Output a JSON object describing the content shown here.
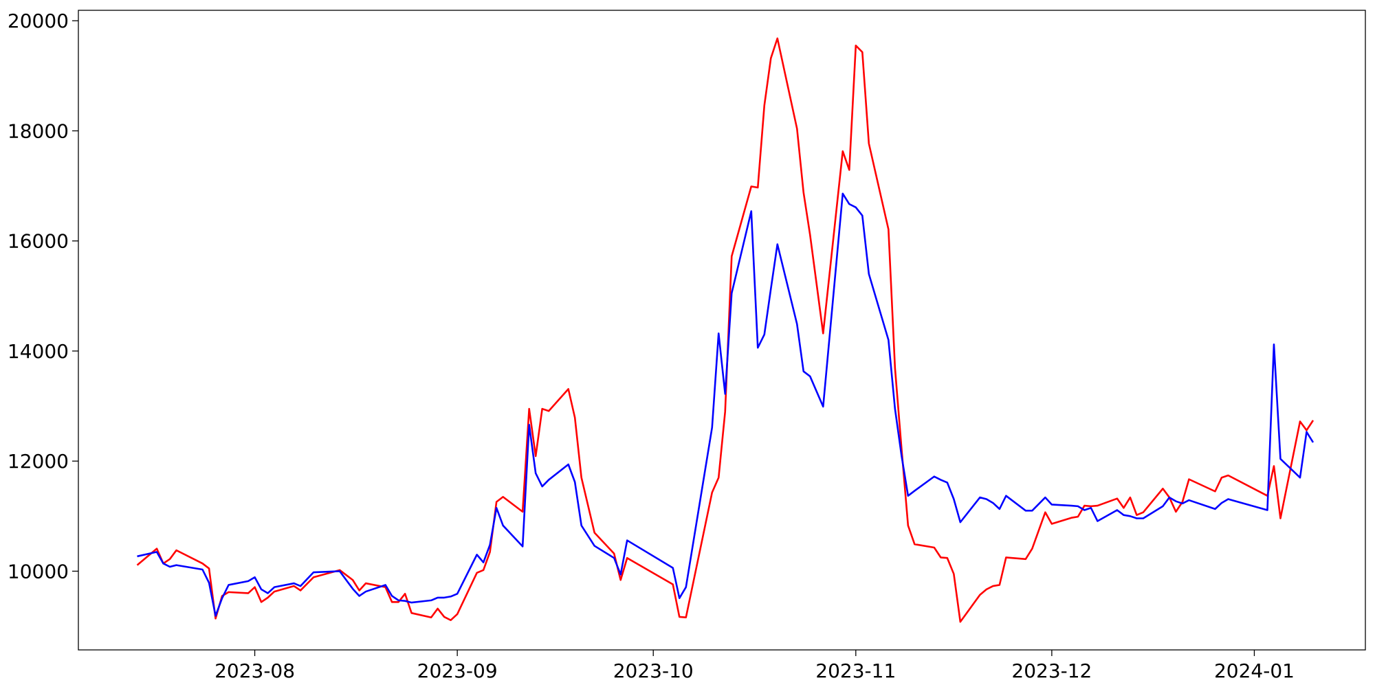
{
  "chart_data": {
    "type": "line",
    "x": [
      "2023-07-14",
      "2023-07-17",
      "2023-07-18",
      "2023-07-19",
      "2023-07-20",
      "2023-07-24",
      "2023-07-25",
      "2023-07-26",
      "2023-07-27",
      "2023-07-28",
      "2023-07-31",
      "2023-08-01",
      "2023-08-02",
      "2023-08-03",
      "2023-08-04",
      "2023-08-07",
      "2023-08-08",
      "2023-08-10",
      "2023-08-14",
      "2023-08-16",
      "2023-08-17",
      "2023-08-18",
      "2023-08-21",
      "2023-08-22",
      "2023-08-23",
      "2023-08-24",
      "2023-08-25",
      "2023-08-28",
      "2023-08-29",
      "2023-08-30",
      "2023-08-31",
      "2023-09-01",
      "2023-09-04",
      "2023-09-05",
      "2023-09-06",
      "2023-09-07",
      "2023-09-08",
      "2023-09-11",
      "2023-09-12",
      "2023-09-13",
      "2023-09-14",
      "2023-09-15",
      "2023-09-18",
      "2023-09-19",
      "2023-09-20",
      "2023-09-22",
      "2023-09-25",
      "2023-09-26",
      "2023-09-27",
      "2023-10-04",
      "2023-10-05",
      "2023-10-06",
      "2023-10-10",
      "2023-10-11",
      "2023-10-12",
      "2023-10-13",
      "2023-10-16",
      "2023-10-17",
      "2023-10-18",
      "2023-10-19",
      "2023-10-20",
      "2023-10-23",
      "2023-10-24",
      "2023-10-25",
      "2023-10-27",
      "2023-10-30",
      "2023-10-31",
      "2023-11-01",
      "2023-11-02",
      "2023-11-03",
      "2023-11-06",
      "2023-11-07",
      "2023-11-08",
      "2023-11-09",
      "2023-11-10",
      "2023-11-13",
      "2023-11-14",
      "2023-11-15",
      "2023-11-16",
      "2023-11-17",
      "2023-11-20",
      "2023-11-21",
      "2023-11-22",
      "2023-11-23",
      "2023-11-24",
      "2023-11-27",
      "2023-11-28",
      "2023-11-30",
      "2023-12-01",
      "2023-12-04",
      "2023-12-05",
      "2023-12-06",
      "2023-12-07",
      "2023-12-08",
      "2023-12-11",
      "2023-12-12",
      "2023-12-13",
      "2023-12-14",
      "2023-12-15",
      "2023-12-18",
      "2023-12-19",
      "2023-12-20",
      "2023-12-21",
      "2023-12-22",
      "2023-12-26",
      "2023-12-27",
      "2023-12-28",
      "2024-01-03",
      "2024-01-04",
      "2024-01-05",
      "2024-01-08",
      "2024-01-09",
      "2024-01-10"
    ],
    "series": [
      {
        "color": "red",
        "values": [
          10110,
          10410,
          10140,
          10220,
          10380,
          10140,
          10050,
          9140,
          9550,
          9620,
          9600,
          9710,
          9440,
          9520,
          9630,
          9730,
          9650,
          9890,
          10020,
          9840,
          9650,
          9780,
          9710,
          9440,
          9440,
          9590,
          9240,
          9160,
          9320,
          9170,
          9110,
          9220,
          9970,
          10020,
          10350,
          11260,
          11350,
          11080,
          12950,
          12090,
          12950,
          12910,
          13310,
          12790,
          11700,
          10700,
          10320,
          9840,
          10240,
          9760,
          9170,
          9160,
          11430,
          11700,
          12900,
          15720,
          16990,
          16970,
          18460,
          19320,
          19680,
          18040,
          16880,
          16110,
          14320,
          17630,
          17290,
          19550,
          19430,
          17770,
          16210,
          13690,
          12230,
          10830,
          10490,
          10430,
          10250,
          10240,
          9950,
          9080,
          9570,
          9670,
          9730,
          9750,
          10250,
          10220,
          10410,
          11070,
          10860,
          10970,
          10990,
          11190,
          11180,
          11190,
          11320,
          11150,
          11340,
          11020,
          11070,
          11500,
          11340,
          11080,
          11260,
          11670,
          11450,
          11700,
          11740,
          11370,
          11910,
          10960,
          12720,
          12560,
          12740
        ]
      },
      {
        "color": "blue",
        "values": [
          10270,
          10350,
          10140,
          10080,
          10110,
          10030,
          9790,
          9190,
          9510,
          9750,
          9820,
          9890,
          9670,
          9600,
          9710,
          9780,
          9730,
          9980,
          10000,
          9680,
          9550,
          9630,
          9750,
          9550,
          9470,
          9460,
          9430,
          9470,
          9520,
          9520,
          9540,
          9590,
          10300,
          10160,
          10480,
          11150,
          10830,
          10450,
          12660,
          11780,
          11540,
          11660,
          11940,
          11620,
          10830,
          10460,
          10240,
          9940,
          10560,
          10060,
          9510,
          9710,
          12610,
          14320,
          13220,
          15050,
          16540,
          14060,
          14300,
          15130,
          15940,
          14490,
          13630,
          13540,
          12990,
          16860,
          16670,
          16610,
          16460,
          15400,
          14200,
          12950,
          12100,
          11370,
          11460,
          11720,
          11660,
          11610,
          11310,
          10890,
          11340,
          11310,
          11240,
          11130,
          11370,
          11100,
          11100,
          11340,
          11210,
          11190,
          11180,
          11110,
          11150,
          10910,
          11110,
          11020,
          11000,
          10960,
          10960,
          11180,
          11340,
          11270,
          11230,
          11290,
          11130,
          11240,
          11310,
          11110,
          14120,
          12040,
          11700,
          12530,
          12340
        ]
      }
    ],
    "xlim": [
      "2023-07-05",
      "2024-01-18"
    ],
    "xticks": [
      {
        "value": "2023-08-01",
        "label": "2023-08"
      },
      {
        "value": "2023-09-01",
        "label": "2023-09"
      },
      {
        "value": "2023-10-01",
        "label": "2023-10"
      },
      {
        "value": "2023-11-01",
        "label": "2023-11"
      },
      {
        "value": "2023-12-01",
        "label": "2023-12"
      },
      {
        "value": "2024-01-01",
        "label": "2024-01"
      }
    ],
    "ylim": [
      8570,
      20190
    ],
    "yticks": [
      10000,
      12000,
      14000,
      16000,
      18000,
      20000
    ],
    "grid": false
  }
}
